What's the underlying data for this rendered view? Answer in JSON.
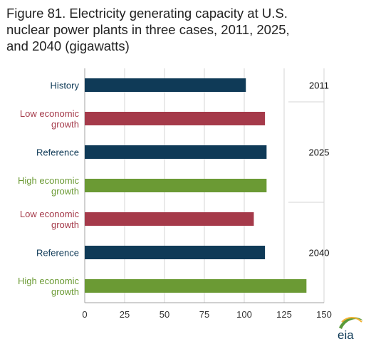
{
  "title": "Figure 81. Electricity generating capacity at U.S.\nnuclear power plants in three cases, 2011, 2025,\nand 2040 (gigawatts)",
  "logo_text": "eia",
  "colors": {
    "navy": "#0f3a57",
    "red": "#a53a4a",
    "green": "#6b9a34",
    "grid": "#d6d6d6",
    "axis_text": "#333333"
  },
  "chart_data": {
    "type": "bar",
    "orientation": "horizontal",
    "title": "Figure 81. Electricity generating capacity at U.S. nuclear power plants in three cases, 2011, 2025, and 2040 (gigawatts)",
    "xlabel": "",
    "ylabel": "",
    "xlim": [
      0,
      150
    ],
    "x_ticks": [
      0,
      25,
      50,
      75,
      100,
      125,
      150
    ],
    "grid": "vertical",
    "groups": [
      {
        "label": "2011",
        "bars": [
          {
            "label": "History",
            "value": 101,
            "color": "#0f3a57"
          }
        ]
      },
      {
        "label": "2025",
        "bars": [
          {
            "label": "Low economic\ngrowth",
            "value": 113,
            "color": "#a53a4a"
          },
          {
            "label": "Reference",
            "value": 114,
            "color": "#0f3a57"
          },
          {
            "label": "High economic\ngrowth",
            "value": 114,
            "color": "#6b9a34"
          }
        ]
      },
      {
        "label": "2040",
        "bars": [
          {
            "label": "Low economic\ngrowth",
            "value": 106,
            "color": "#a53a4a"
          },
          {
            "label": "Reference",
            "value": 113,
            "color": "#0f3a57"
          },
          {
            "label": "High economic\ngrowth",
            "value": 139,
            "color": "#6b9a34"
          }
        ]
      }
    ]
  }
}
